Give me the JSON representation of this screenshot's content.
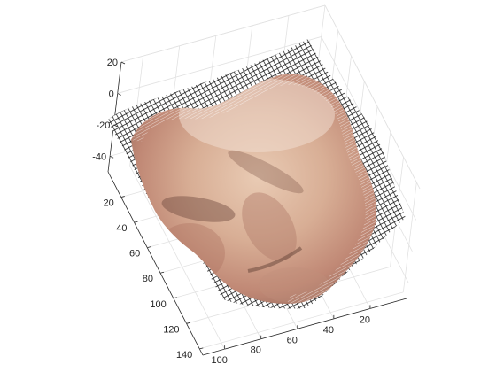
{
  "chart_data": {
    "type": "surface",
    "z_axis": {
      "ticks": [
        20,
        0,
        -20,
        -40
      ]
    },
    "y_axis": {
      "ticks": [
        20,
        40,
        60,
        80,
        100,
        120,
        140
      ]
    },
    "x_axis": {
      "ticks": [
        100,
        80,
        60,
        40,
        20
      ]
    },
    "grid": true,
    "surface": {
      "texture": "face photograph mapped onto mesh",
      "mesh_color": "#000000",
      "highlight_color": "#ffffff",
      "skin_colors": [
        "#e8c7ad",
        "#c99a82",
        "#a86e5c",
        "#6e4a3e"
      ]
    }
  }
}
